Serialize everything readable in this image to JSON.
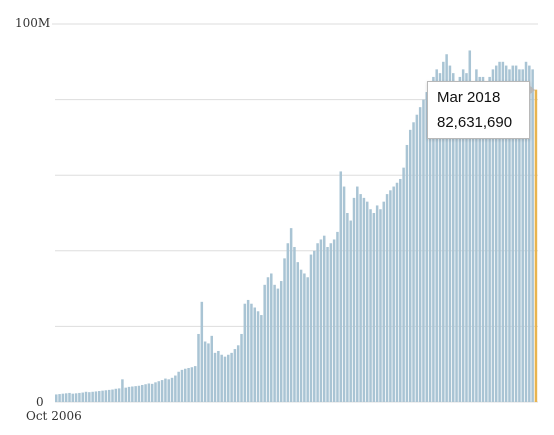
{
  "chart_data": {
    "type": "bar",
    "title": "",
    "xlabel": "",
    "ylabel": "",
    "x_start_label": "Oct 2006",
    "y_tick_labels": [
      "0",
      "100M"
    ],
    "ylim": [
      0,
      100000000
    ],
    "grid": true,
    "colors": {
      "bar": "#a9c4d4",
      "highlight": "#e8b44f",
      "grid": "#dddddd"
    },
    "highlight": {
      "label": "Mar 2018",
      "value": 82631690,
      "value_text": "82,631,690"
    },
    "values": [
      2000000,
      2100000,
      2200000,
      2300000,
      2400000,
      2200000,
      2300000,
      2400000,
      2500000,
      2700000,
      2600000,
      2700000,
      2800000,
      2900000,
      3000000,
      3100000,
      3200000,
      3300000,
      3500000,
      3600000,
      6000000,
      3800000,
      4000000,
      4100000,
      4200000,
      4300000,
      4500000,
      4700000,
      4900000,
      4800000,
      5200000,
      5500000,
      5800000,
      6200000,
      6000000,
      6400000,
      7000000,
      8000000,
      8500000,
      8800000,
      9000000,
      9200000,
      9500000,
      18000000,
      26500000,
      16000000,
      15500000,
      17500000,
      13000000,
      13500000,
      12500000,
      12000000,
      12500000,
      13000000,
      14000000,
      15000000,
      18000000,
      26000000,
      27000000,
      26000000,
      25000000,
      24000000,
      23000000,
      31000000,
      33000000,
      34000000,
      31000000,
      30000000,
      32000000,
      38000000,
      42000000,
      46000000,
      41000000,
      37000000,
      35000000,
      34000000,
      33000000,
      39000000,
      40000000,
      42000000,
      43000000,
      44000000,
      41000000,
      42000000,
      43000000,
      45000000,
      61000000,
      57000000,
      50000000,
      48000000,
      54000000,
      57000000,
      55000000,
      54000000,
      53000000,
      51000000,
      50000000,
      52000000,
      51000000,
      53000000,
      55000000,
      56000000,
      57000000,
      58000000,
      59000000,
      62000000,
      68000000,
      72000000,
      74000000,
      76000000,
      78000000,
      80000000,
      82000000,
      84000000,
      86000000,
      88000000,
      87000000,
      90000000,
      92000000,
      89000000,
      87000000,
      84000000,
      86000000,
      88000000,
      87000000,
      93000000,
      84000000,
      88000000,
      86000000,
      86000000,
      84000000,
      86000000,
      88000000,
      89000000,
      90000000,
      90000000,
      89000000,
      88000000,
      89000000,
      89000000,
      88000000,
      88000000,
      90000000,
      89000000,
      88000000,
      82631690
    ]
  },
  "tooltip": {
    "date": "Mar 2018",
    "value": "82,631,690"
  }
}
